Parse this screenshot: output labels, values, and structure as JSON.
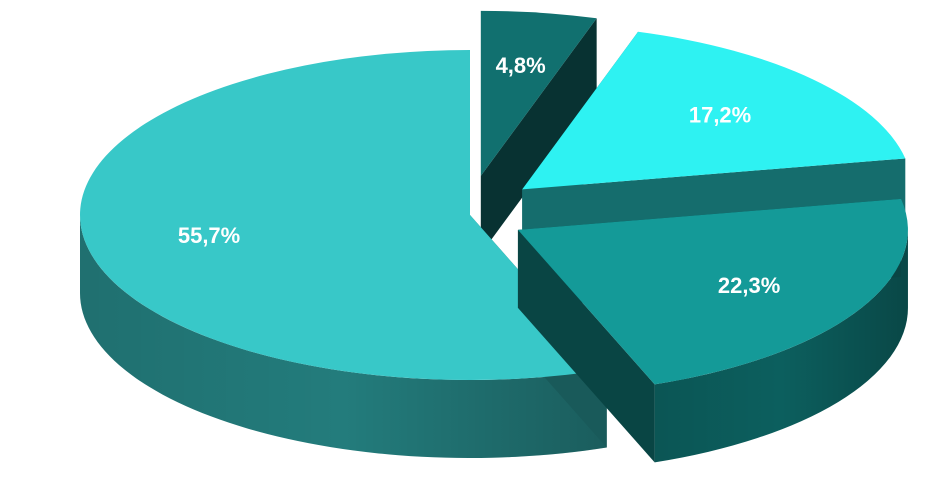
{
  "chart_data": {
    "type": "pie",
    "style": "3d-exploded",
    "slices": [
      {
        "label": "4,8%",
        "value": 4.8,
        "color": "#11706f"
      },
      {
        "label": "17,2%",
        "value": 17.2,
        "color": "#2ef2f2"
      },
      {
        "label": "22,3%",
        "value": 22.3,
        "color": "#149a98"
      },
      {
        "label": "55,7%",
        "value": 55.7,
        "color": "#38c8c8"
      }
    ]
  }
}
